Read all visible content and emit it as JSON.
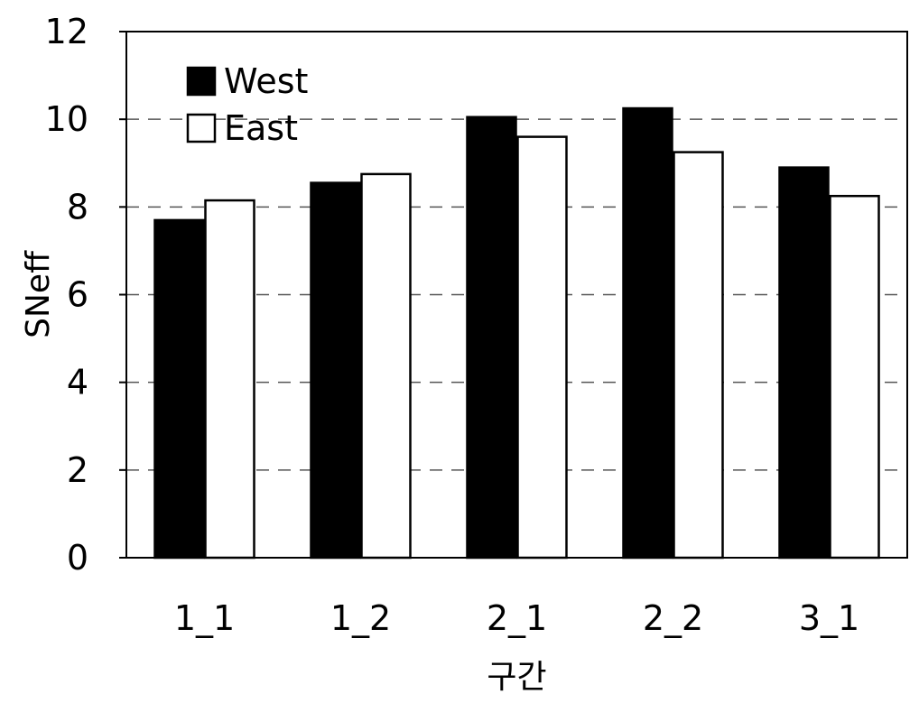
{
  "chart_data": {
    "type": "bar",
    "categories": [
      "1_1",
      "1_2",
      "2_1",
      "2_2",
      "3_1"
    ],
    "series": [
      {
        "name": "West",
        "values": [
          7.7,
          8.55,
          10.05,
          10.25,
          8.9
        ],
        "color": "#000000"
      },
      {
        "name": "East",
        "values": [
          8.15,
          8.75,
          9.6,
          9.25,
          8.25
        ],
        "color": "#ffffff"
      }
    ],
    "xlabel": "구간",
    "ylabel": "SNeff",
    "ylim": [
      0,
      12
    ],
    "yticks": [
      0,
      2,
      4,
      6,
      8,
      10,
      12
    ],
    "grid": true,
    "legend": "top-left"
  }
}
